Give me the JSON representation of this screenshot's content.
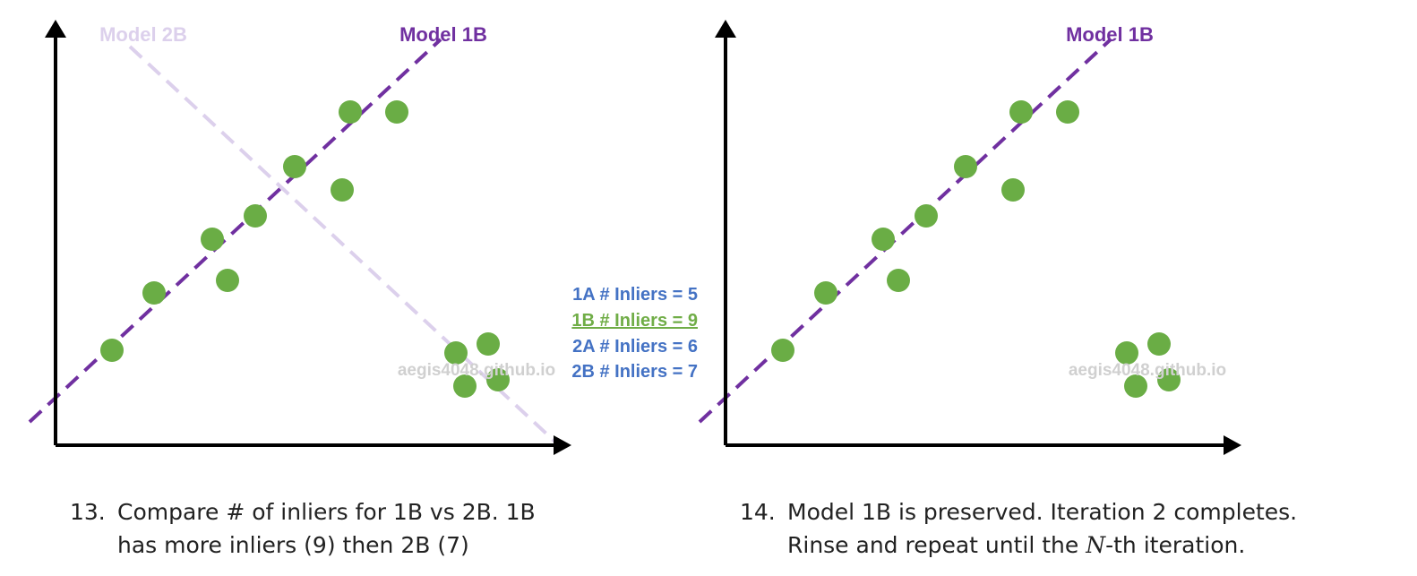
{
  "colors": {
    "point": "#6aad45",
    "model_1b": "#7030a0",
    "model_2b_faded": "#dcd0ec",
    "count_blue": "#4472c4",
    "count_green": "#70ad47",
    "watermark": "#d0d0d0",
    "axis": "#000000"
  },
  "left_panel": {
    "label_model_2b": "Model 2B",
    "label_model_1b": "Model 1B",
    "watermark": "aegis4048.github.io",
    "counts": [
      {
        "text": "1A # Inliers = 5",
        "color": "#4472c4",
        "underline": false
      },
      {
        "text": "1B # Inliers = 9",
        "color": "#70ad47",
        "underline": true
      },
      {
        "text": "2A # Inliers = 6",
        "color": "#4472c4",
        "underline": false
      },
      {
        "text": "2B # Inliers = 7",
        "color": "#4472c4",
        "underline": false
      }
    ],
    "caption_number": "13.",
    "caption_line1": "Compare # of inliers for 1B vs 2B. 1B",
    "caption_line2": "has more inliers (9) then 2B (7)"
  },
  "right_panel": {
    "label_model_1b": "Model 1B",
    "watermark": "aegis4048.github.io",
    "caption_number": "14.",
    "caption_line1": "Model 1B is preserved. Iteration 2 completes.",
    "caption_line2_a": "Rinse and repeat until the ",
    "caption_line2_var": "N",
    "caption_line2_b": "-th iteration."
  }
}
